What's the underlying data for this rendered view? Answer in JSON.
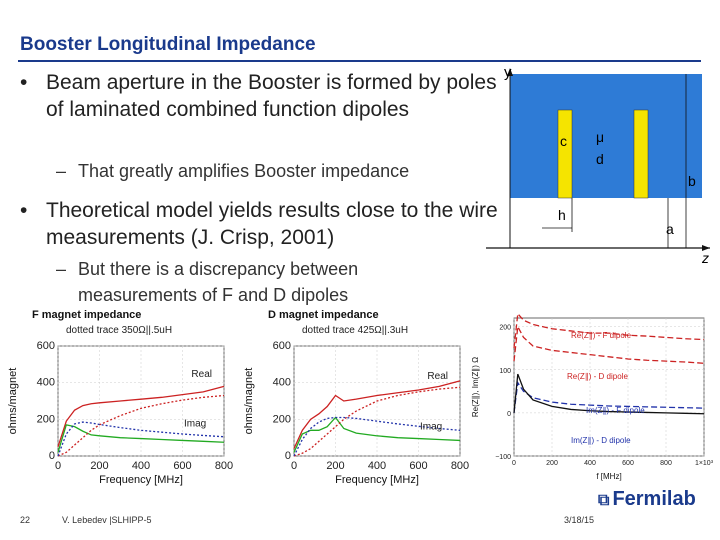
{
  "title": "Booster Longitudinal Impedance",
  "bullets": [
    {
      "text": "Beam aperture in the Booster is formed by poles of laminated combined function dipoles",
      "sub": "That greatly amplifies Booster impedance"
    },
    {
      "text": "Theoretical model yields results close to the wire measurements (J. Crisp, 2001)",
      "sub": "But there is a discrepancy between measurements of F and D dipoles"
    }
  ],
  "diagram": {
    "labels": {
      "y": "y",
      "z": "z",
      "c": "c",
      "mu": "μ",
      "d": "d",
      "b": "b",
      "h": "h",
      "a": "a"
    },
    "colors": {
      "fill": "#2e7bd6",
      "strip": "#f5e400"
    }
  },
  "chart_data": [
    {
      "type": "line",
      "title": "F magnet impedance",
      "annotation": "dotted trace 350Ω||.5uH",
      "xlabel": "Frequency [MHz]",
      "ylabel": "ohms/magnet",
      "xlim": [
        0,
        800
      ],
      "ylim": [
        0,
        600
      ],
      "xticks": [
        0,
        200,
        400,
        600,
        800
      ],
      "yticks": [
        0,
        200,
        400,
        600
      ],
      "series_labels": [
        "Real",
        "Imag"
      ],
      "x": [
        0,
        40,
        80,
        120,
        160,
        200,
        300,
        400,
        500,
        600,
        700,
        800
      ],
      "series": [
        {
          "name": "Real",
          "color": "#cc2222",
          "values": [
            50,
            190,
            250,
            275,
            285,
            290,
            300,
            310,
            320,
            335,
            350,
            380
          ]
        },
        {
          "name": "Imag",
          "color": "#22aa22",
          "values": [
            20,
            170,
            160,
            135,
            115,
            110,
            100,
            95,
            90,
            85,
            80,
            75
          ]
        },
        {
          "name": "Real fit",
          "color": "#cc2222",
          "dotted": true,
          "values": [
            0,
            20,
            60,
            100,
            140,
            170,
            220,
            260,
            285,
            305,
            320,
            330
          ]
        },
        {
          "name": "Imag fit",
          "color": "#2233aa",
          "dotted": true,
          "values": [
            0,
            120,
            175,
            185,
            180,
            172,
            155,
            140,
            130,
            120,
            112,
            105
          ]
        }
      ]
    },
    {
      "type": "line",
      "title": "D magnet impedance",
      "annotation": "dotted trace 425Ω||.3uH",
      "xlabel": "Frequency [MHz]",
      "ylabel": "ohms/magnet",
      "xlim": [
        0,
        800
      ],
      "ylim": [
        0,
        600
      ],
      "xticks": [
        0,
        200,
        400,
        600,
        800
      ],
      "yticks": [
        0,
        200,
        400,
        600
      ],
      "series_labels": [
        "Real",
        "Imag"
      ],
      "x": [
        0,
        40,
        80,
        120,
        160,
        200,
        240,
        300,
        400,
        500,
        600,
        700,
        800
      ],
      "series": [
        {
          "name": "Real",
          "color": "#cc2222",
          "values": [
            40,
            140,
            200,
            230,
            270,
            330,
            300,
            310,
            330,
            345,
            360,
            380,
            410
          ]
        },
        {
          "name": "Imag",
          "color": "#22aa22",
          "values": [
            20,
            120,
            140,
            140,
            160,
            210,
            150,
            125,
            110,
            100,
            95,
            90,
            85
          ]
        },
        {
          "name": "Real fit",
          "color": "#cc2222",
          "dotted": true,
          "values": [
            0,
            15,
            40,
            80,
            120,
            160,
            200,
            245,
            300,
            330,
            350,
            365,
            375
          ]
        },
        {
          "name": "Imag fit",
          "color": "#2233aa",
          "dotted": true,
          "values": [
            0,
            90,
            150,
            185,
            205,
            210,
            210,
            205,
            190,
            175,
            162,
            150,
            140
          ]
        }
      ]
    },
    {
      "type": "line",
      "title": "",
      "ylabel": "Re(Z∥), Im(Z∥) Ω",
      "xlabel": "f [MHz]",
      "xlim": [
        0,
        1000
      ],
      "ylim": [
        -100,
        220
      ],
      "xticks": [
        0,
        200,
        400,
        600,
        800,
        1000
      ],
      "xtick_labels": [
        "0",
        "200",
        "400",
        "600",
        "800",
        "1×10³"
      ],
      "yticks": [
        -100,
        0,
        100,
        200
      ],
      "ytick_labels": [
        "−100",
        "0",
        "100",
        "200"
      ],
      "x": [
        0,
        20,
        50,
        100,
        200,
        300,
        400,
        500,
        600,
        700,
        800,
        900,
        1000
      ],
      "series": [
        {
          "name": "Re(Z∥) - F dipole",
          "color": "#cc2222",
          "dashed": true,
          "values": [
            150,
            230,
            215,
            205,
            195,
            190,
            185,
            185,
            180,
            178,
            175,
            172,
            170
          ]
        },
        {
          "name": "Re(Z∥) - D dipole",
          "color": "#cc2222",
          "dashed": true,
          "values": [
            120,
            200,
            175,
            155,
            145,
            140,
            135,
            130,
            125,
            122,
            120,
            118,
            115
          ]
        },
        {
          "name": "Im(Z∥) - F dipole",
          "color": "#2233aa",
          "dashed": true,
          "values": [
            0,
            70,
            50,
            35,
            25,
            20,
            18,
            16,
            15,
            14,
            13,
            12,
            11
          ]
        },
        {
          "name": "Im(Z∥) - D dipole",
          "color": "#111111",
          "values": [
            0,
            90,
            55,
            30,
            15,
            8,
            5,
            3,
            2,
            1,
            0,
            -1,
            -2
          ]
        }
      ]
    }
  ],
  "footer": {
    "page": "22",
    "author": "V. Lebedev |SLHIPP-5",
    "date": "3/18/15",
    "logo": "Fermilab"
  }
}
